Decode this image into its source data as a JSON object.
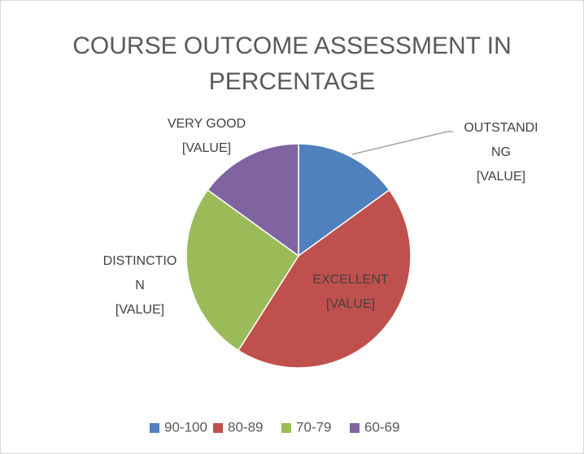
{
  "chart_data": {
    "type": "pie",
    "title_lines": [
      "COURSE OUTCOME ASSESSMENT IN",
      "PERCENTAGE"
    ],
    "categories": [
      "90-100",
      "80-89",
      "70-79",
      "60-69"
    ],
    "values": [
      15,
      44,
      26,
      15
    ],
    "colors": [
      "#4f81bd",
      "#c0504d",
      "#9bbb59",
      "#8064a2"
    ],
    "data_labels": [
      [
        "OUTSTANDI",
        "NG",
        "[VALUE]"
      ],
      [
        "EXCELLENT",
        "[VALUE]"
      ],
      [
        "DISTINCTIO",
        "N",
        "[VALUE]"
      ],
      [
        "VERY GOOD",
        "[VALUE]"
      ]
    ],
    "legend": "bottom"
  }
}
